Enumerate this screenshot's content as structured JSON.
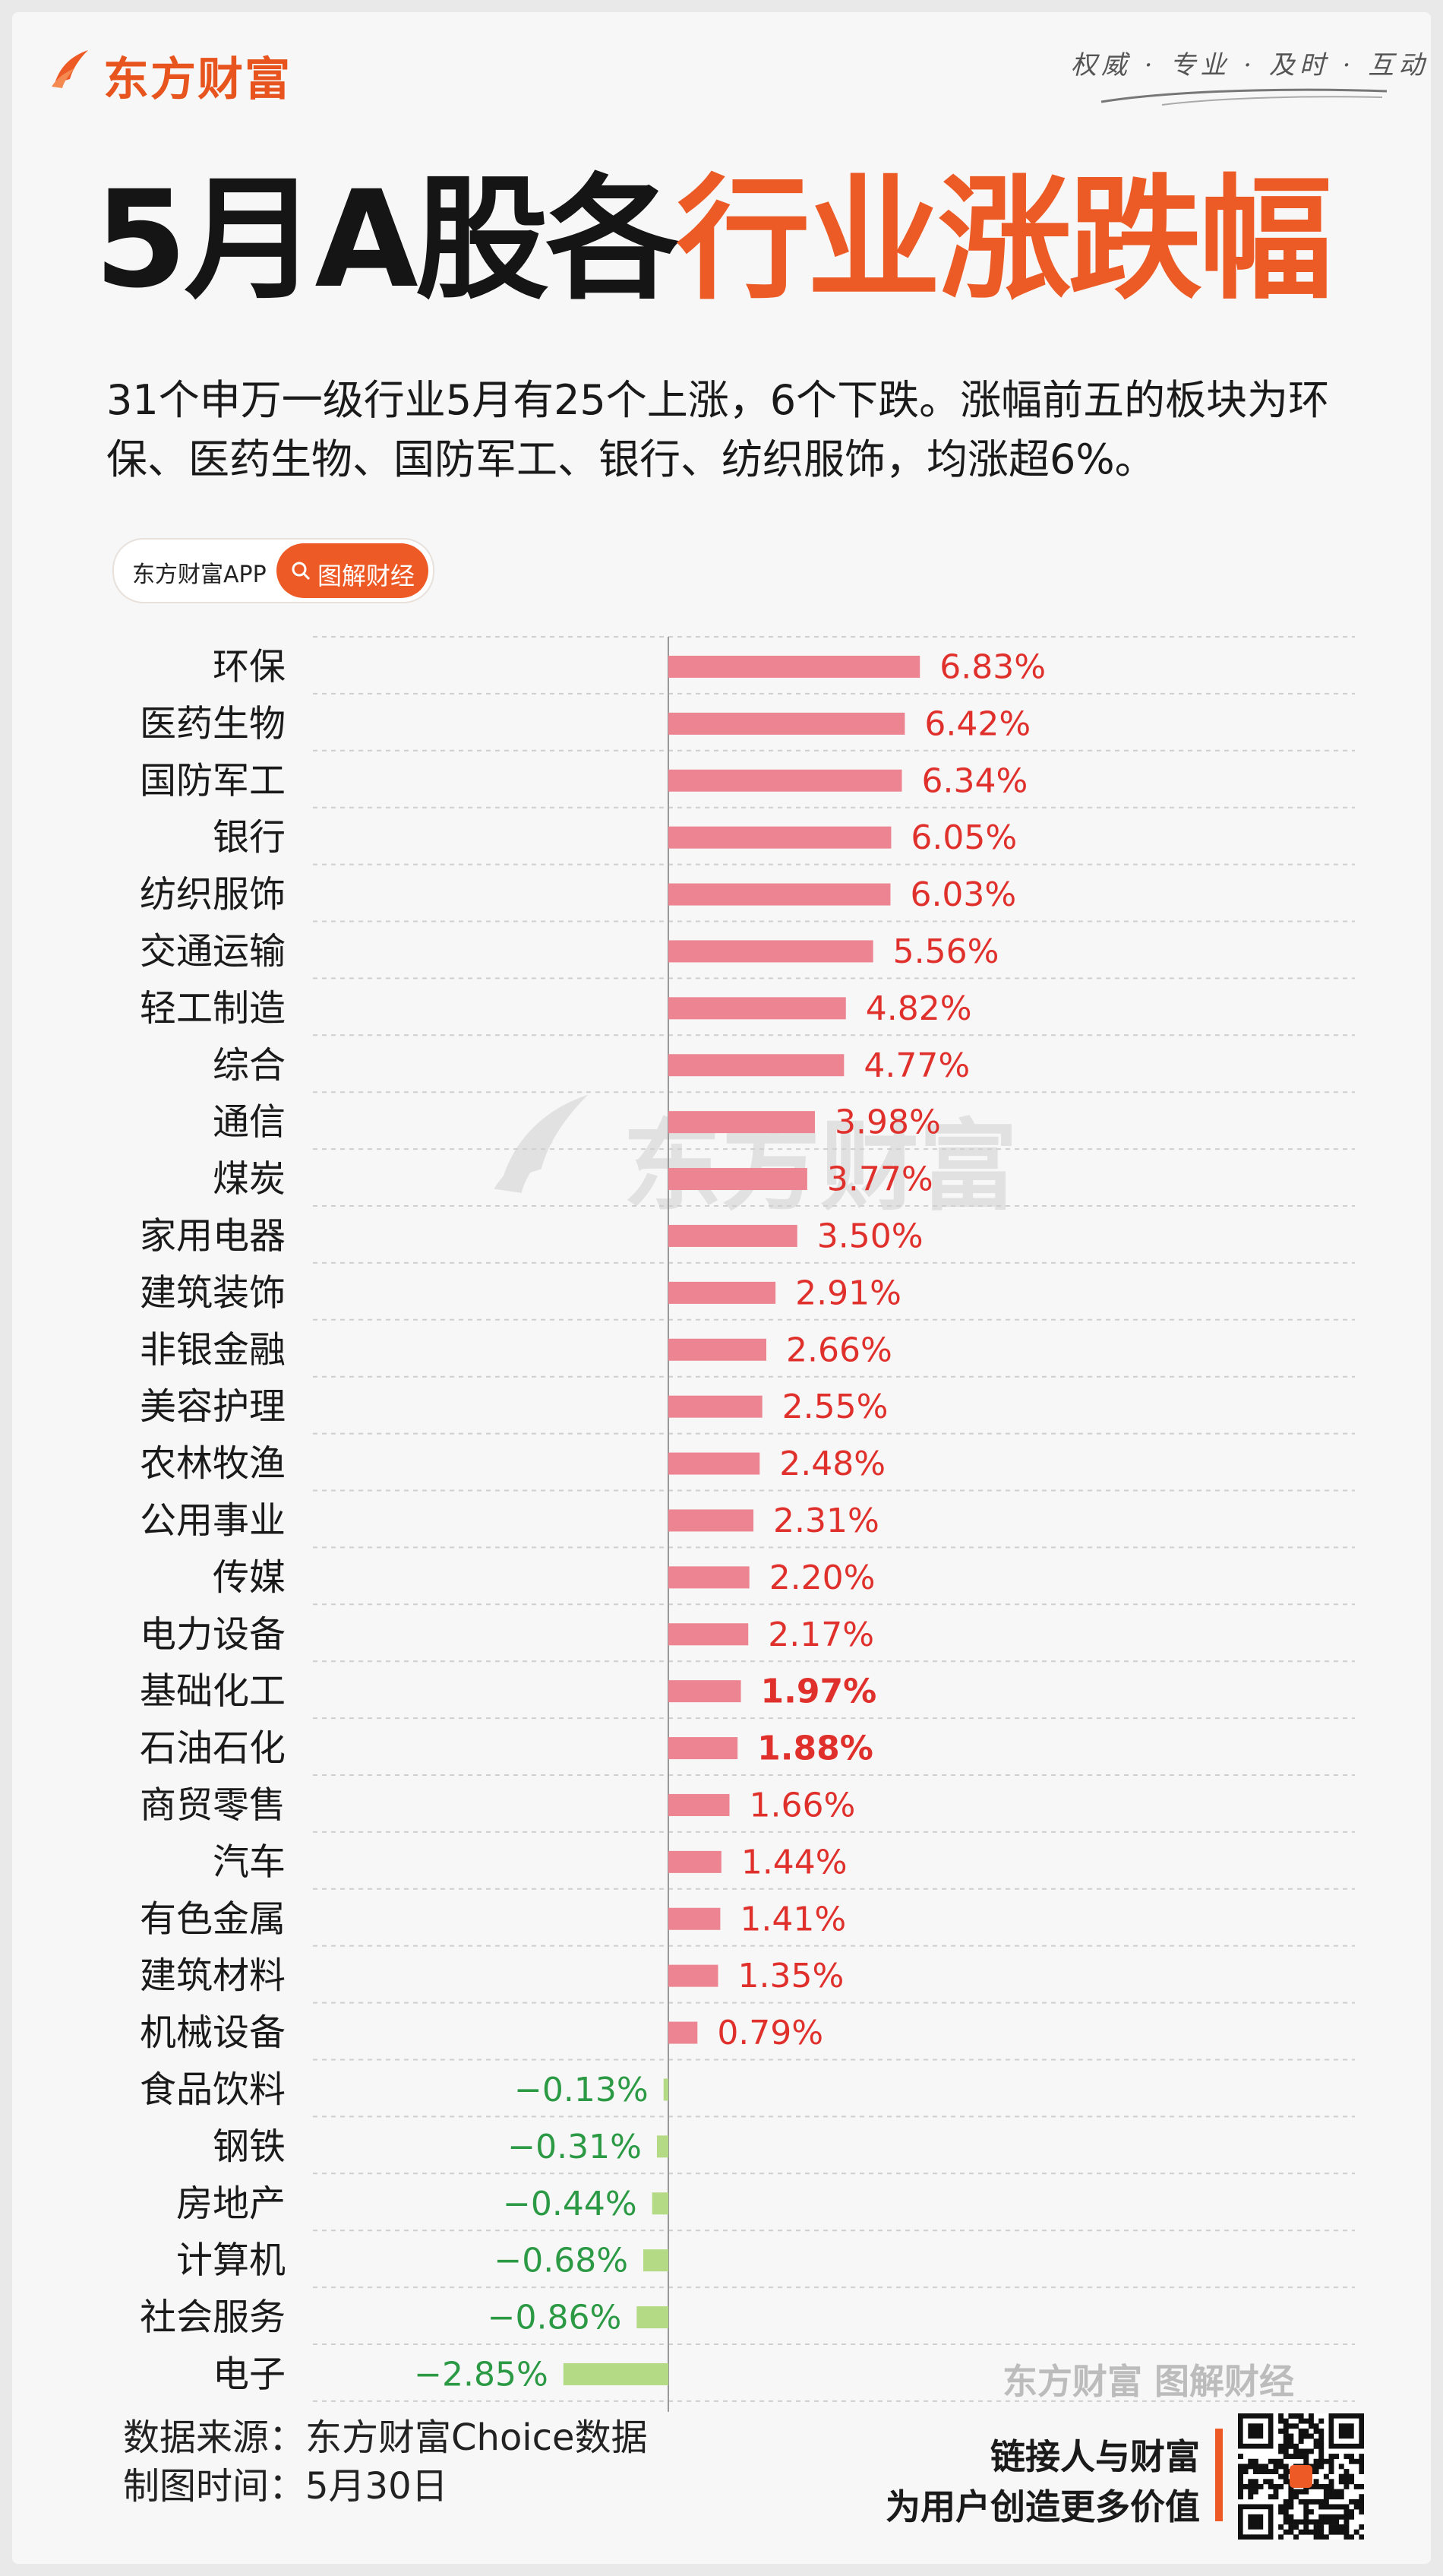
{
  "header": {
    "brand": "东方财富",
    "slogan": "权威 · 专业 · 及时 · 互动",
    "title_black": "5月A股各",
    "title_orange": "行业涨跌幅",
    "subtitle": "31个申万一级行业5月有25个上涨，6个下跌。涨幅前五的板块为环保、医药生物、国防军工、银行、纺织服饰，均涨超6%。"
  },
  "badge": {
    "app_name": "东方财富APP",
    "label": "图解财经"
  },
  "watermark": {
    "text": "东方财富",
    "bottom_text": "东方财富 图解财经"
  },
  "footer": {
    "source": "数据来源：东方财富Choice数据",
    "date": "制图时间：5月30日",
    "slogan_line1": "链接人与财富",
    "slogan_line2": "为用户创造更多价值"
  },
  "colors": {
    "brand": "#ee5a25",
    "positive_bar": "#ec8591",
    "positive_text": "#e0302c",
    "negative_bar": "#b5da86",
    "negative_text": "#2c9a45"
  },
  "chart_data": {
    "type": "bar",
    "orientation": "horizontal",
    "title": "5月A股各行业涨跌幅",
    "xlabel": "",
    "ylabel": "",
    "unit": "%",
    "categories": [
      "环保",
      "医药生物",
      "国防军工",
      "银行",
      "纺织服饰",
      "交通运输",
      "轻工制造",
      "综合",
      "通信",
      "煤炭",
      "家用电器",
      "建筑装饰",
      "非银金融",
      "美容护理",
      "农林牧渔",
      "公用事业",
      "传媒",
      "电力设备",
      "基础化工",
      "石油石化",
      "商贸零售",
      "汽车",
      "有色金属",
      "建筑材料",
      "机械设备",
      "食品饮料",
      "钢铁",
      "房地产",
      "计算机",
      "社会服务",
      "电子"
    ],
    "values": [
      6.83,
      6.42,
      6.34,
      6.05,
      6.03,
      5.56,
      4.82,
      4.77,
      3.98,
      3.77,
      3.5,
      2.91,
      2.66,
      2.55,
      2.48,
      2.31,
      2.2,
      2.17,
      1.97,
      1.88,
      1.66,
      1.44,
      1.41,
      1.35,
      0.79,
      -0.13,
      -0.31,
      -0.44,
      -0.68,
      -0.86,
      -2.85
    ],
    "value_labels": [
      "6.83%",
      "6.42%",
      "6.34%",
      "6.05%",
      "6.03%",
      "5.56%",
      "4.82%",
      "4.77%",
      "3.98%",
      "3.77%",
      "3.50%",
      "2.91%",
      "2.66%",
      "2.55%",
      "2.48%",
      "2.31%",
      "2.20%",
      "2.17%",
      "1.97%",
      "1.88%",
      "1.66%",
      "1.44%",
      "1.41%",
      "1.35%",
      "0.79%",
      "−0.13%",
      "−0.31%",
      "−0.44%",
      "−0.68%",
      "−0.86%",
      "−2.85%"
    ],
    "xlim": [
      -3.2,
      8.0
    ],
    "grid": "horizontal dashed"
  }
}
